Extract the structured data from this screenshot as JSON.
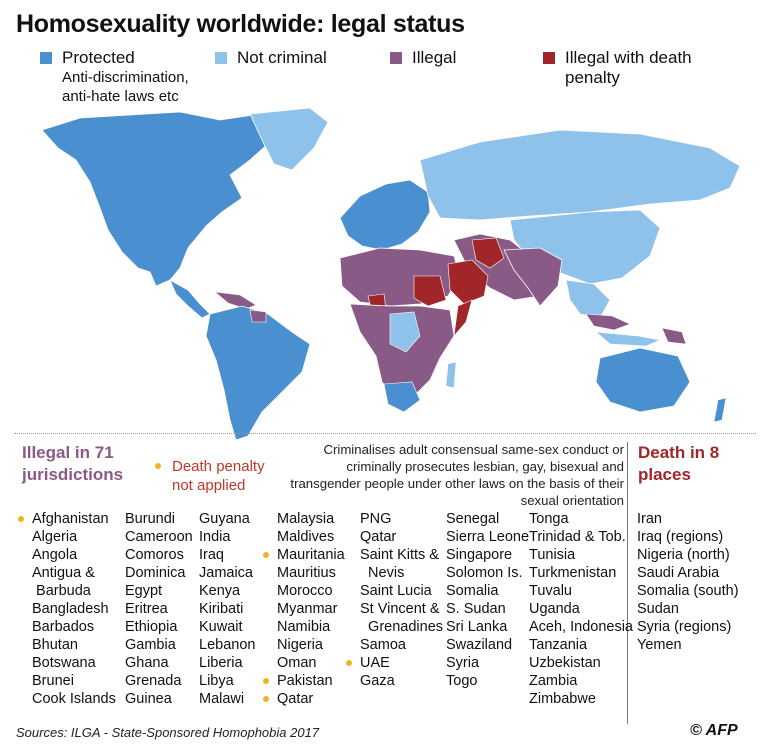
{
  "title": "Homosexuality worldwide: legal status",
  "legend": [
    {
      "label": "Protected",
      "sub": "Anti-discrimination,\nanti-hate laws etc",
      "color": "#4a90d0"
    },
    {
      "label": "Not criminal",
      "sub": "",
      "color": "#8ec2ea"
    },
    {
      "label": "Illegal",
      "sub": "",
      "color": "#8a5a87"
    },
    {
      "label": "Illegal with death\npenalty",
      "sub": "",
      "color": "#a0262a"
    }
  ],
  "illegal_heading": "Illegal in 71\njurisdictions",
  "death_penalty_note": "Death penalty\nnot applied",
  "criminal_note": "Criminalises adult consensual same-sex conduct or criminally prosecutes lesbian, gay, bisexual and transgender people under other laws on the basis of their sexual orientation",
  "death_heading": "Death in 8\nplaces",
  "illegal_columns": [
    [
      {
        "name": "Afghanistan",
        "dot": true
      },
      {
        "name": "Algeria"
      },
      {
        "name": "Angola"
      },
      {
        "name": "Antigua &"
      },
      {
        "name": " Barbuda"
      },
      {
        "name": "Bangladesh"
      },
      {
        "name": "Barbados"
      },
      {
        "name": "Bhutan"
      },
      {
        "name": "Botswana"
      },
      {
        "name": "Brunei"
      },
      {
        "name": "Cook Islands"
      }
    ],
    [
      {
        "name": "Burundi"
      },
      {
        "name": "Cameroon"
      },
      {
        "name": "Comoros"
      },
      {
        "name": "Dominica"
      },
      {
        "name": "Egypt"
      },
      {
        "name": "Eritrea"
      },
      {
        "name": "Ethiopia"
      },
      {
        "name": "Gambia"
      },
      {
        "name": "Ghana"
      },
      {
        "name": "Grenada"
      },
      {
        "name": "Guinea"
      }
    ],
    [
      {
        "name": "Guyana"
      },
      {
        "name": "India"
      },
      {
        "name": "Iraq"
      },
      {
        "name": "Jamaica"
      },
      {
        "name": "Kenya"
      },
      {
        "name": "Kiribati"
      },
      {
        "name": "Kuwait"
      },
      {
        "name": "Lebanon"
      },
      {
        "name": "Liberia"
      },
      {
        "name": "Libya"
      },
      {
        "name": "Malawi"
      }
    ],
    [
      {
        "name": "Malaysia"
      },
      {
        "name": "Maldives"
      },
      {
        "name": "Mauritania",
        "dot": true
      },
      {
        "name": "Mauritius"
      },
      {
        "name": "Morocco"
      },
      {
        "name": "Myanmar"
      },
      {
        "name": "Namibia"
      },
      {
        "name": "Nigeria"
      },
      {
        "name": "Oman"
      },
      {
        "name": "Pakistan",
        "dot": true
      },
      {
        "name": "Qatar",
        "dot": true
      }
    ],
    [
      {
        "name": "PNG"
      },
      {
        "name": "Qatar"
      },
      {
        "name": "Saint Kitts &"
      },
      {
        "name": "  Nevis"
      },
      {
        "name": "Saint Lucia"
      },
      {
        "name": "St Vincent &"
      },
      {
        "name": "  Grenadines"
      },
      {
        "name": "Samoa"
      },
      {
        "name": "UAE",
        "dot": true
      },
      {
        "name": "Gaza"
      }
    ],
    [
      {
        "name": "Senegal"
      },
      {
        "name": "Sierra Leone"
      },
      {
        "name": "Singapore"
      },
      {
        "name": "Solomon Is."
      },
      {
        "name": "Somalia"
      },
      {
        "name": "S. Sudan"
      },
      {
        "name": "Sri Lanka"
      },
      {
        "name": "Swaziland"
      },
      {
        "name": "Syria"
      },
      {
        "name": "Togo"
      }
    ],
    [
      {
        "name": "Tonga"
      },
      {
        "name": "Trinidad & Tob."
      },
      {
        "name": "Tunisia"
      },
      {
        "name": "Turkmenistan"
      },
      {
        "name": "Tuvalu"
      },
      {
        "name": "Uganda"
      },
      {
        "name": "Aceh, Indonesia"
      },
      {
        "name": "Tanzania"
      },
      {
        "name": "Uzbekistan"
      },
      {
        "name": "Zambia"
      },
      {
        "name": "Zimbabwe"
      }
    ]
  ],
  "death_list": [
    "Iran",
    "Iraq (regions)",
    "Nigeria (north)",
    "Saudi Arabia",
    "Somalia (south)",
    "Sudan",
    "Syria (regions)",
    "Yemen"
  ],
  "source": "Sources: ILGA - State-Sponsored Homophobia 2017",
  "credit": "© AFP",
  "colors": {
    "protected": "#4a90d0",
    "not_criminal": "#8ec2ea",
    "illegal": "#8a5a87",
    "death": "#a0262a",
    "dot": "#f0b323"
  }
}
